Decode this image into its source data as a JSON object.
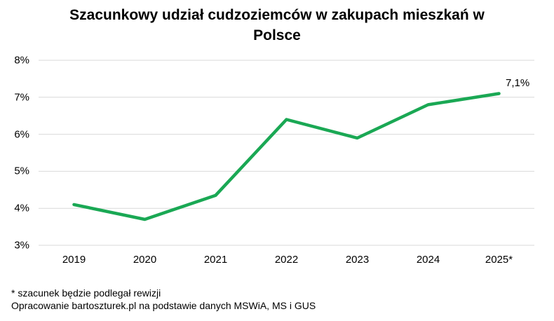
{
  "title": {
    "line1": "Szacunkowy udział cudzoziemców w zakupach mieszkań w",
    "line2": "Polsce"
  },
  "footer": {
    "note": "* szacunek będzie podlegał rewizji",
    "source": "Opracowanie bartoszturek.pl na podstawie danych MSWiA, MS i GUS"
  },
  "chart_data": {
    "type": "line",
    "title": "Szacunkowy udział cudzoziemców w zakupach mieszkań w Polsce",
    "categories": [
      "2019",
      "2020",
      "2021",
      "2022",
      "2023",
      "2024",
      "2025*"
    ],
    "values": [
      4.1,
      3.7,
      4.35,
      6.4,
      5.9,
      6.8,
      7.1
    ],
    "unit": "%",
    "ylim": [
      3,
      8
    ],
    "yticks": [
      {
        "value": 8,
        "label": "8%"
      },
      {
        "value": 7,
        "label": "7%"
      },
      {
        "value": 6,
        "label": "6%"
      },
      {
        "value": 5,
        "label": "5%"
      },
      {
        "value": 4,
        "label": "4%"
      },
      {
        "value": 3,
        "label": "3%"
      }
    ],
    "grid": true,
    "legend": "none",
    "end_label": "7,1%",
    "line_color": "#1aa854",
    "gridline_color": "#d9d9d9",
    "text_color": "#000000"
  }
}
